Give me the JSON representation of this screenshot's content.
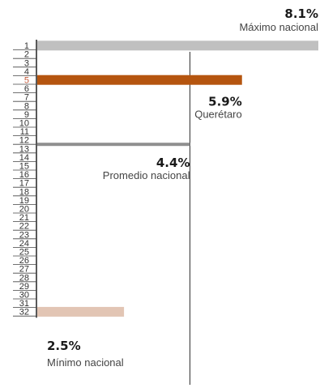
{
  "chart_data": {
    "type": "bar",
    "orientation": "horizontal",
    "categories": [
      "1",
      "2",
      "3",
      "4",
      "5",
      "6",
      "7",
      "8",
      "9",
      "10",
      "11",
      "12",
      "13",
      "14",
      "15",
      "16",
      "17",
      "18",
      "19",
      "20",
      "21",
      "22",
      "23",
      "24",
      "25",
      "26",
      "27",
      "28",
      "29",
      "30",
      "31",
      "32"
    ],
    "bars": [
      {
        "rank": 1,
        "value": 8.1,
        "value_label": "8.1%",
        "name": "Máximo nacional",
        "color": "#c0c0c0"
      },
      {
        "rank": 5,
        "value": 5.9,
        "value_label": "5.9%",
        "name": "Querétaro",
        "color": "#b5550f"
      },
      {
        "rank": 13,
        "value": 4.4,
        "value_label": "4.4%",
        "name": "Promedio nacional",
        "color": "#8f8f8f"
      },
      {
        "rank": 32,
        "value": 2.5,
        "value_label": "2.5%",
        "name": "Mínimo nacional",
        "color": "#e2c5b4"
      }
    ],
    "reference_line": {
      "value": 4.4
    },
    "highlight_rank": 5,
    "highlight_color": "#c45a3b",
    "xlim": [
      0,
      8.1
    ],
    "title": "",
    "xlabel": "",
    "ylabel": "",
    "grid": false
  }
}
